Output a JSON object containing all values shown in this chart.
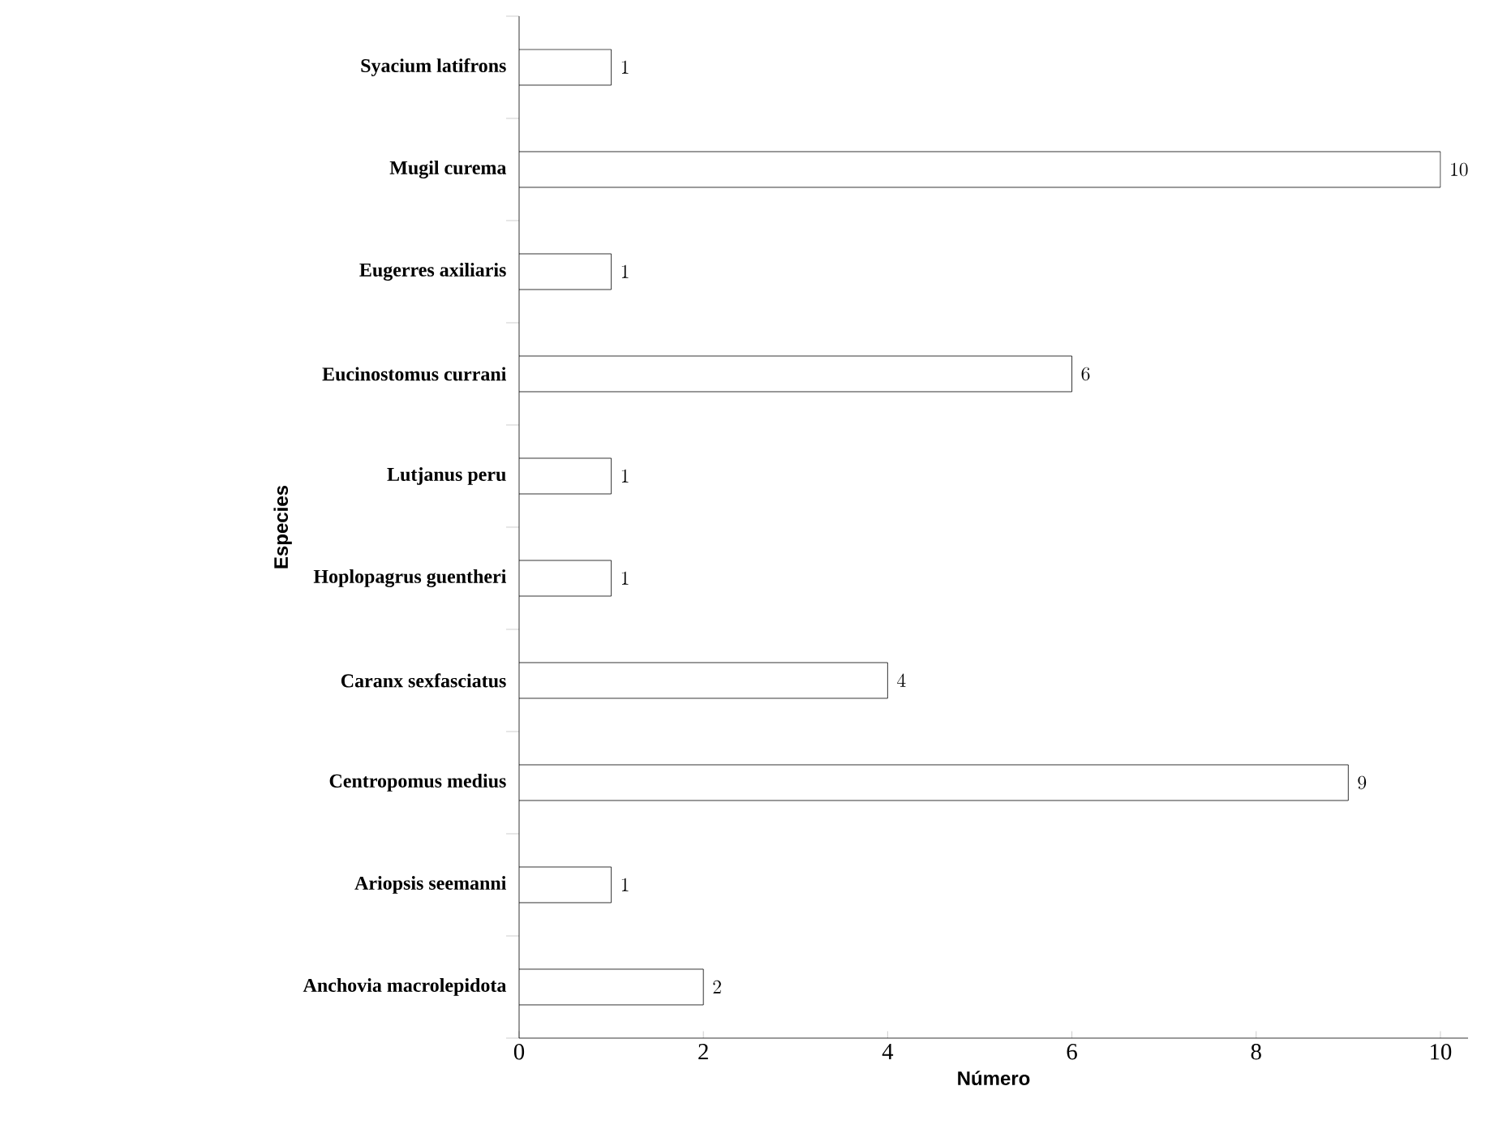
{
  "chart_data": {
    "type": "bar",
    "orientation": "horizontal",
    "xlabel": "Número",
    "ylabel": "Especies",
    "categories": [
      "Syacium latifrons",
      "Mugil curema",
      "Eugerres axiliaris",
      "Eucinostomus currani",
      "Lutjanus peru",
      "Hoplopagrus guentheri",
      "Caranx sexfasciatus",
      "Centropomus medius",
      "Ariopsis seemanni",
      "Anchovia macrolepidota"
    ],
    "values": [
      1,
      10,
      1,
      6,
      1,
      1,
      4,
      9,
      1,
      2
    ],
    "color": "#ffffff",
    "xlim": [
      0,
      10.3
    ],
    "xticks": [
      0,
      2,
      4,
      6,
      8,
      10
    ],
    "data_labels": true
  }
}
